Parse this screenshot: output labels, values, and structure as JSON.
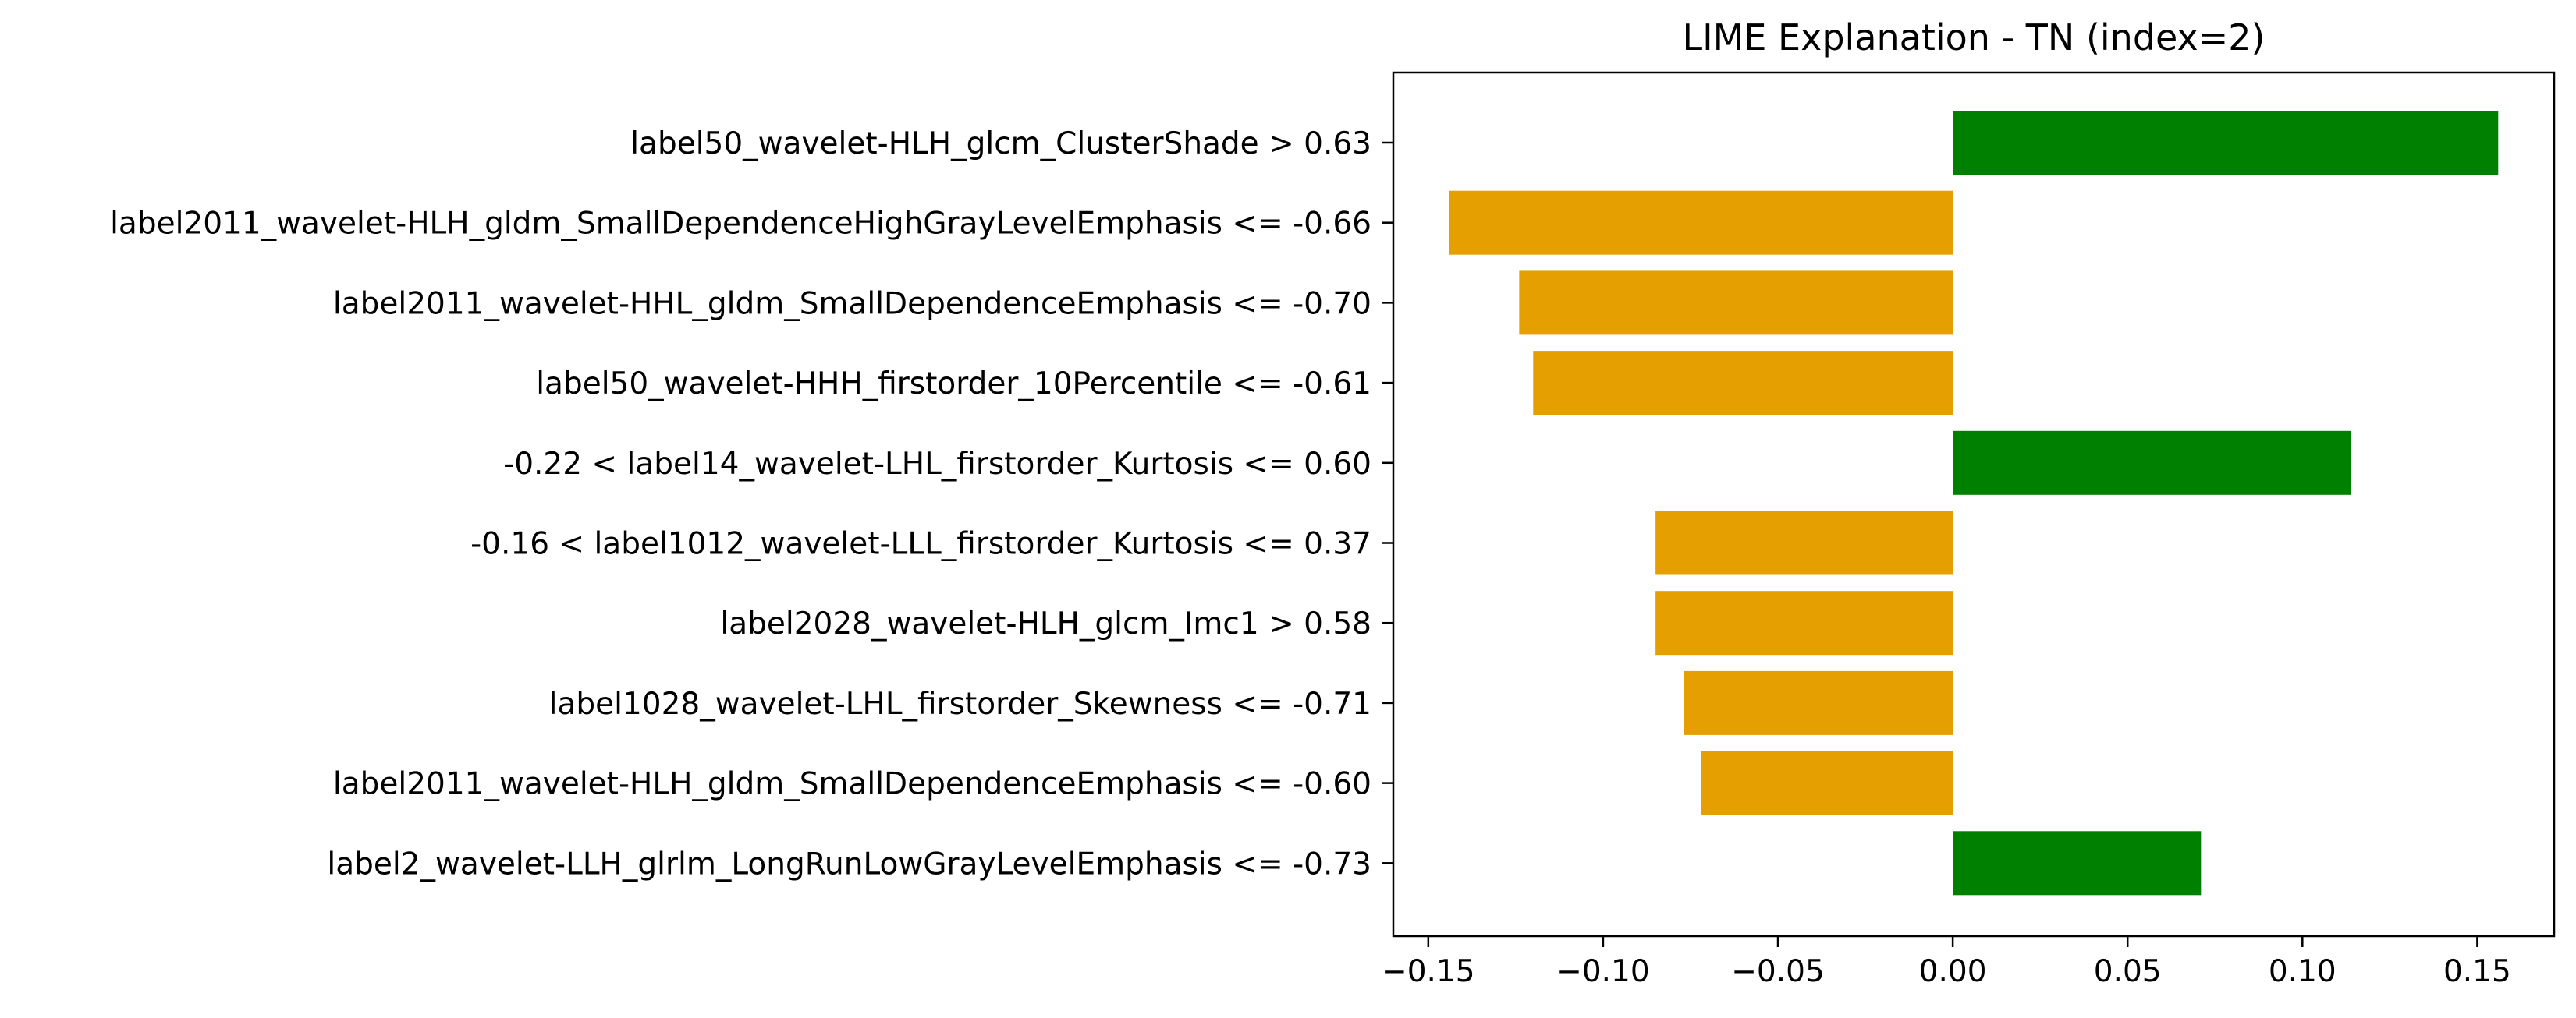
{
  "chart_data": {
    "type": "bar",
    "orientation": "horizontal",
    "title": "LIME Explanation - TN (index=2)",
    "xlabel": "",
    "ylabel": "",
    "categories": [
      "label50_wavelet-HLH_glcm_ClusterShade > 0.63",
      "label2011_wavelet-HLH_gldm_SmallDependenceHighGrayLevelEmphasis <= -0.66",
      "label2011_wavelet-HHL_gldm_SmallDependenceEmphasis <= -0.70",
      "label50_wavelet-HHH_firstorder_10Percentile <= -0.61",
      "-0.22 < label14_wavelet-LHL_firstorder_Kurtosis <= 0.60",
      "-0.16 < label1012_wavelet-LLL_firstorder_Kurtosis <= 0.37",
      "label2028_wavelet-HLH_glcm_Imc1 > 0.58",
      "label1028_wavelet-LHL_firstorder_Skewness <= -0.71",
      "label2011_wavelet-HLH_gldm_SmallDependenceEmphasis <= -0.60",
      "label2_wavelet-LLH_glrlm_LongRunLowGrayLevelEmphasis <= -0.73"
    ],
    "values": [
      0.156,
      -0.144,
      -0.124,
      -0.12,
      0.114,
      -0.085,
      -0.085,
      -0.077,
      -0.072,
      0.071
    ],
    "xlim": [
      -0.16,
      0.172
    ],
    "xticks": [
      -0.15,
      -0.1,
      -0.05,
      0.0,
      0.05,
      0.1,
      0.15
    ],
    "xtick_labels": [
      "−0.15",
      "−0.10",
      "−0.05",
      "0.00",
      "0.05",
      "0.10",
      "0.15"
    ],
    "colors": {
      "positive": "#008000",
      "negative": "#e69f00"
    },
    "grid": false,
    "legend": "none"
  }
}
